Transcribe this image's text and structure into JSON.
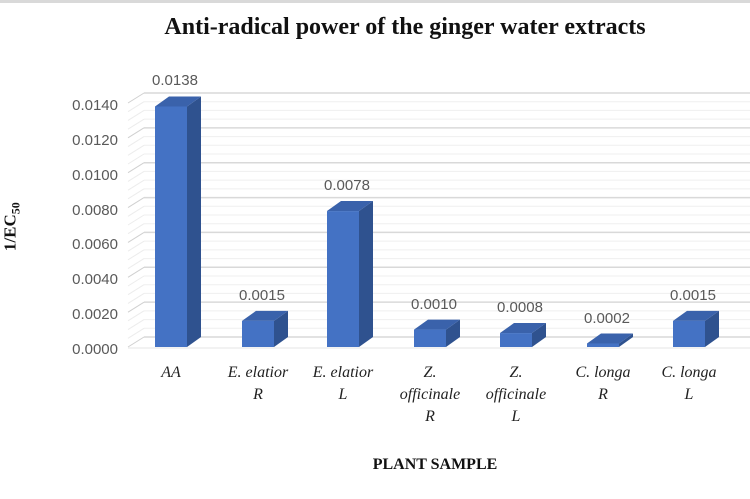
{
  "chart_data": {
    "type": "bar",
    "style": "3d-column",
    "title": "Anti-radical power of the ginger water extracts",
    "xlabel": "PLANT SAMPLE",
    "ylabel": "1/EC50",
    "ylim": [
      0,
      0.014
    ],
    "yticks": [
      "0.0000",
      "0.0020",
      "0.0040",
      "0.0060",
      "0.0080",
      "0.0100",
      "0.0120",
      "0.0140"
    ],
    "grid": true,
    "legend": "none",
    "categories": [
      "AA",
      "E. elatior R",
      "E. elatior L",
      "Z. officinale R",
      "Z. officinale L",
      "C. longa R",
      "C. longa L"
    ],
    "category_lines": [
      [
        "AA"
      ],
      [
        "E. elatior",
        "R"
      ],
      [
        "E. elatior",
        "L"
      ],
      [
        "Z.",
        "officinale",
        "R"
      ],
      [
        "Z.",
        "officinale",
        "L"
      ],
      [
        "C. longa",
        "R"
      ],
      [
        "C. longa",
        "L"
      ]
    ],
    "values": [
      0.0138,
      0.0015,
      0.0078,
      0.001,
      0.0008,
      0.0002,
      0.0015
    ],
    "value_labels": [
      "0.0138",
      "0.0015",
      "0.0078",
      "0.0010",
      "0.0008",
      "0.0002",
      "0.0015"
    ],
    "colors": {
      "bar_front": "#4472C4",
      "bar_side": "#2F528F",
      "bar_top": "#3A62AB",
      "grid": "#d9d9d9"
    }
  }
}
